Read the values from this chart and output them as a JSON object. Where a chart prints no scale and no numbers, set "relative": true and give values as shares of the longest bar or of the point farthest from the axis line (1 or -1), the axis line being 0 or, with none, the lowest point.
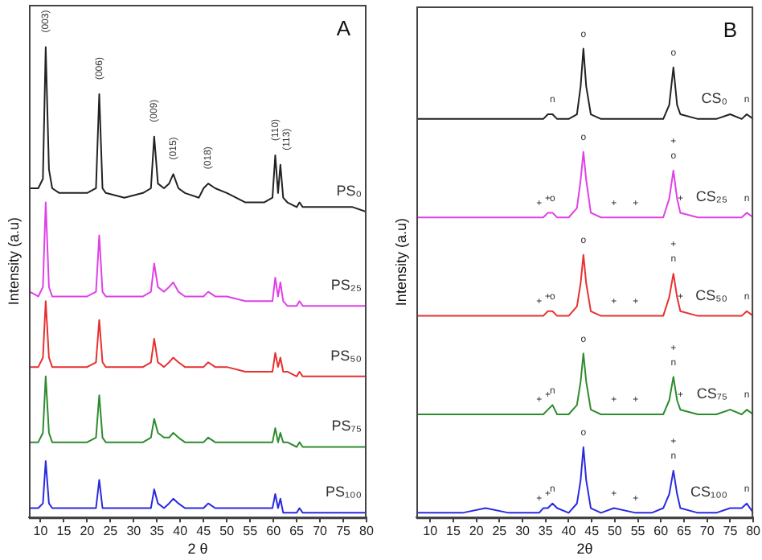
{
  "chart_data": [
    {
      "type": "line",
      "title": "A",
      "xlabel": "2 θ",
      "ylabel": "Intensity (a.u)",
      "relative": true,
      "tick_labels": "x",
      "legend": false,
      "grid": false,
      "xlim": [
        7.5,
        80
      ],
      "xticks": [
        10,
        15,
        20,
        25,
        30,
        35,
        40,
        45,
        50,
        55,
        60,
        65,
        70,
        75,
        80
      ],
      "x": [
        7.7,
        9.5,
        10.5,
        11.1,
        11.8,
        12.5,
        14,
        17,
        20,
        21.9,
        22.6,
        23.3,
        24,
        28,
        32,
        33.7,
        34.4,
        35.2,
        36.5,
        37.6,
        38.5,
        39.6,
        41,
        44,
        45,
        46,
        47.5,
        50,
        54,
        58,
        59.8,
        60.4,
        61.0,
        61.5,
        62.1,
        63,
        65,
        65.6,
        66.3,
        70,
        74,
        77,
        80
      ],
      "series": [
        {
          "name": "PS₀",
          "color": "#222222",
          "values": [
            0.7,
            0.7,
            0.72,
            1.0,
            0.74,
            0.7,
            0.69,
            0.69,
            0.69,
            0.7,
            0.9,
            0.7,
            0.69,
            0.68,
            0.69,
            0.7,
            0.81,
            0.71,
            0.7,
            0.71,
            0.73,
            0.7,
            0.69,
            0.68,
            0.7,
            0.71,
            0.7,
            0.69,
            0.67,
            0.67,
            0.68,
            0.77,
            0.69,
            0.75,
            0.68,
            0.67,
            0.66,
            0.67,
            0.66,
            0.66,
            0.66,
            0.66,
            0.65
          ]
        },
        {
          "name": "PS₂₅",
          "color": "#e040e8",
          "values": [
            0.48,
            0.47,
            0.49,
            0.67,
            0.49,
            0.47,
            0.47,
            0.47,
            0.47,
            0.48,
            0.6,
            0.48,
            0.47,
            0.47,
            0.47,
            0.48,
            0.54,
            0.49,
            0.48,
            0.49,
            0.5,
            0.48,
            0.47,
            0.47,
            0.47,
            0.48,
            0.47,
            0.47,
            0.46,
            0.46,
            0.46,
            0.51,
            0.47,
            0.5,
            0.46,
            0.45,
            0.45,
            0.46,
            0.45,
            0.45,
            0.45,
            0.45,
            0.45
          ]
        },
        {
          "name": "PS₅₀",
          "color": "#e83030",
          "values": [
            0.32,
            0.32,
            0.34,
            0.46,
            0.34,
            0.32,
            0.32,
            0.32,
            0.32,
            0.33,
            0.42,
            0.33,
            0.32,
            0.32,
            0.32,
            0.33,
            0.38,
            0.33,
            0.32,
            0.33,
            0.34,
            0.33,
            0.32,
            0.32,
            0.32,
            0.33,
            0.32,
            0.32,
            0.31,
            0.31,
            0.31,
            0.35,
            0.32,
            0.34,
            0.31,
            0.31,
            0.3,
            0.31,
            0.3,
            0.3,
            0.3,
            0.3,
            0.3
          ]
        },
        {
          "name": "PS₇₅",
          "color": "#2e8b2e",
          "values": [
            0.16,
            0.16,
            0.18,
            0.3,
            0.18,
            0.16,
            0.16,
            0.16,
            0.16,
            0.17,
            0.26,
            0.17,
            0.16,
            0.16,
            0.16,
            0.17,
            0.21,
            0.18,
            0.17,
            0.17,
            0.18,
            0.17,
            0.16,
            0.16,
            0.16,
            0.17,
            0.16,
            0.16,
            0.16,
            0.16,
            0.16,
            0.19,
            0.16,
            0.18,
            0.16,
            0.16,
            0.15,
            0.16,
            0.15,
            0.15,
            0.15,
            0.15,
            0.15
          ]
        },
        {
          "name": "PS₁₀₀",
          "color": "#2a2ae0",
          "values": [
            0.02,
            0.02,
            0.03,
            0.12,
            0.03,
            0.02,
            0.02,
            0.02,
            0.02,
            0.02,
            0.08,
            0.02,
            0.02,
            0.02,
            0.02,
            0.02,
            0.06,
            0.03,
            0.02,
            0.03,
            0.04,
            0.03,
            0.02,
            0.02,
            0.02,
            0.03,
            0.02,
            0.02,
            0.02,
            0.02,
            0.02,
            0.05,
            0.02,
            0.04,
            0.01,
            0.01,
            0.01,
            0.02,
            0.01,
            0.01,
            0.01,
            0.01,
            0.01
          ]
        }
      ],
      "annotations": [
        {
          "text": "(003)",
          "x": 11.1,
          "y": 1.0
        },
        {
          "text": "(006)",
          "x": 22.6,
          "y": 0.9
        },
        {
          "text": "(009)",
          "x": 34.4,
          "y": 0.81
        },
        {
          "text": "(015)",
          "x": 38.5,
          "y": 0.73
        },
        {
          "text": "(018)",
          "x": 46,
          "y": 0.71
        },
        {
          "text": "(110)",
          "x": 60.4,
          "y": 0.77
        },
        {
          "text": "(113)",
          "x": 61.5,
          "y": 0.75
        }
      ]
    },
    {
      "type": "line",
      "title": "B",
      "xlabel": "2θ",
      "ylabel": "Intensity (a.u)",
      "relative": true,
      "tick_labels": "x",
      "legend": false,
      "grid": false,
      "xlim": [
        7,
        80
      ],
      "xticks": [
        10,
        15,
        20,
        25,
        30,
        35,
        40,
        45,
        50,
        55,
        60,
        65,
        70,
        75,
        80
      ],
      "x": [
        7,
        12,
        17,
        22,
        27,
        33.6,
        34.5,
        35.5,
        36.5,
        37.5,
        40,
        41.8,
        42.6,
        43.2,
        43.8,
        44.8,
        47,
        49.8,
        54.5,
        58,
        60.5,
        61.8,
        62.7,
        63.5,
        64.2,
        68,
        72,
        75,
        77.5,
        78.6,
        80
      ],
      "series": [
        {
          "name": "CS₀",
          "color": "#222222",
          "values": [
            0.85,
            0.85,
            0.85,
            0.85,
            0.85,
            0.85,
            0.85,
            0.86,
            0.86,
            0.85,
            0.85,
            0.86,
            0.92,
            1.0,
            0.92,
            0.86,
            0.85,
            0.85,
            0.85,
            0.85,
            0.85,
            0.88,
            0.96,
            0.88,
            0.86,
            0.85,
            0.85,
            0.86,
            0.85,
            0.86,
            0.85
          ]
        },
        {
          "name": "CS₂₅",
          "color": "#e040e8",
          "values": [
            0.64,
            0.64,
            0.64,
            0.64,
            0.64,
            0.64,
            0.64,
            0.65,
            0.65,
            0.64,
            0.64,
            0.66,
            0.72,
            0.78,
            0.72,
            0.65,
            0.64,
            0.64,
            0.64,
            0.64,
            0.64,
            0.68,
            0.74,
            0.68,
            0.65,
            0.64,
            0.64,
            0.64,
            0.64,
            0.65,
            0.64
          ]
        },
        {
          "name": "CS₅₀",
          "color": "#e83030",
          "values": [
            0.43,
            0.43,
            0.43,
            0.43,
            0.43,
            0.43,
            0.43,
            0.44,
            0.44,
            0.43,
            0.43,
            0.45,
            0.5,
            0.56,
            0.5,
            0.44,
            0.43,
            0.43,
            0.43,
            0.43,
            0.43,
            0.47,
            0.52,
            0.47,
            0.44,
            0.43,
            0.43,
            0.43,
            0.43,
            0.44,
            0.43
          ]
        },
        {
          "name": "CS₇₅",
          "color": "#2e8b2e",
          "values": [
            0.22,
            0.22,
            0.22,
            0.22,
            0.22,
            0.22,
            0.22,
            0.23,
            0.24,
            0.22,
            0.22,
            0.24,
            0.29,
            0.35,
            0.29,
            0.23,
            0.22,
            0.22,
            0.22,
            0.22,
            0.22,
            0.25,
            0.3,
            0.25,
            0.23,
            0.22,
            0.22,
            0.23,
            0.22,
            0.23,
            0.22
          ]
        },
        {
          "name": "CS₁₀₀",
          "color": "#2a2ae0",
          "values": [
            0.01,
            0.01,
            0.01,
            0.02,
            0.01,
            0.01,
            0.02,
            0.02,
            0.03,
            0.02,
            0.01,
            0.03,
            0.08,
            0.15,
            0.08,
            0.02,
            0.01,
            0.02,
            0.01,
            0.01,
            0.02,
            0.05,
            0.1,
            0.05,
            0.02,
            0.01,
            0.01,
            0.02,
            0.02,
            0.03,
            0.01
          ]
        }
      ],
      "annotations": [
        {
          "text": "n",
          "x": 36.5,
          "y": 0.86
        },
        {
          "text": "o",
          "x": 43.2,
          "y": 1.0
        },
        {
          "text": "o",
          "x": 62.7,
          "y": 0.96
        },
        {
          "text": "n",
          "x": 78.6,
          "y": 0.86
        },
        {
          "text": "+",
          "x": 33.6,
          "y": 0.64
        },
        {
          "text": "+",
          "x": 35.5,
          "y": 0.65
        },
        {
          "text": "o",
          "x": 36.5,
          "y": 0.65
        },
        {
          "text": "o",
          "x": 43.2,
          "y": 0.78
        },
        {
          "text": "+",
          "x": 49.8,
          "y": 0.64
        },
        {
          "text": "+",
          "x": 54.5,
          "y": 0.64
        },
        {
          "text": "o",
          "x": 62.7,
          "y": 0.74
        },
        {
          "text": "+",
          "x": 62.7,
          "y": 0.74
        },
        {
          "text": "+",
          "x": 64.2,
          "y": 0.65
        },
        {
          "text": "n",
          "x": 78.6,
          "y": 0.65
        },
        {
          "text": "o",
          "x": 43.2,
          "y": 0.56
        },
        {
          "text": "n",
          "x": 62.7,
          "y": 0.52
        },
        {
          "text": "+",
          "x": 62.7,
          "y": 0.52
        },
        {
          "text": "+",
          "x": 33.6,
          "y": 0.43
        },
        {
          "text": "+",
          "x": 35.5,
          "y": 0.44
        },
        {
          "text": "o",
          "x": 36.5,
          "y": 0.44
        },
        {
          "text": "+",
          "x": 49.8,
          "y": 0.43
        },
        {
          "text": "+",
          "x": 54.5,
          "y": 0.43
        },
        {
          "text": "+",
          "x": 64.2,
          "y": 0.44
        },
        {
          "text": "n",
          "x": 78.6,
          "y": 0.44
        },
        {
          "text": "o",
          "x": 43.2,
          "y": 0.35
        },
        {
          "text": "n",
          "x": 62.7,
          "y": 0.3
        },
        {
          "text": "+",
          "x": 62.7,
          "y": 0.3
        },
        {
          "text": "+",
          "x": 33.6,
          "y": 0.22
        },
        {
          "text": "+",
          "x": 35.5,
          "y": 0.23
        },
        {
          "text": "n",
          "x": 36.5,
          "y": 0.24
        },
        {
          "text": "+",
          "x": 49.8,
          "y": 0.22
        },
        {
          "text": "+",
          "x": 54.5,
          "y": 0.22
        },
        {
          "text": "+",
          "x": 64.2,
          "y": 0.23
        },
        {
          "text": "n",
          "x": 78.6,
          "y": 0.23
        },
        {
          "text": "o",
          "x": 43.2,
          "y": 0.15
        },
        {
          "text": "n",
          "x": 62.7,
          "y": 0.1
        },
        {
          "text": "+",
          "x": 62.7,
          "y": 0.1
        },
        {
          "text": "+",
          "x": 33.6,
          "y": 0.01
        },
        {
          "text": "+",
          "x": 35.5,
          "y": 0.02
        },
        {
          "text": "n",
          "x": 36.5,
          "y": 0.03
        },
        {
          "text": "+",
          "x": 49.8,
          "y": 0.02
        },
        {
          "text": "+",
          "x": 54.5,
          "y": 0.01
        },
        {
          "text": "n",
          "x": 78.6,
          "y": 0.03
        }
      ]
    }
  ]
}
